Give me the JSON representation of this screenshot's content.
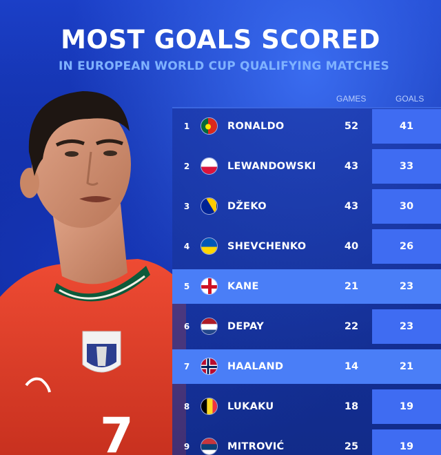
{
  "title": "MOST GOALS SCORED",
  "subtitle": "IN EUROPEAN WORLD CUP QUALIFYING MATCHES",
  "columns": {
    "games": "GAMES",
    "goals": "GOALS"
  },
  "colors": {
    "background": "#1236b0",
    "highlight": "#4a7ef7",
    "goals_column": "#3f6cf2",
    "subtitle": "#7fb2ff",
    "jersey": "#e8412d"
  },
  "rows": [
    {
      "rank": "1",
      "name": "RONALDO",
      "games": "52",
      "goals": "41",
      "flag": "portugal-flag-icon",
      "highlight": false
    },
    {
      "rank": "2",
      "name": "LEWANDOWSKI",
      "games": "43",
      "goals": "33",
      "flag": "poland-flag-icon",
      "highlight": false
    },
    {
      "rank": "3",
      "name": "DŽEKO",
      "games": "43",
      "goals": "30",
      "flag": "bosnia-flag-icon",
      "highlight": false
    },
    {
      "rank": "4",
      "name": "SHEVCHENKO",
      "games": "40",
      "goals": "26",
      "flag": "ukraine-flag-icon",
      "highlight": false
    },
    {
      "rank": "5",
      "name": "KANE",
      "games": "21",
      "goals": "23",
      "flag": "england-flag-icon",
      "highlight": true
    },
    {
      "rank": "6",
      "name": "DEPAY",
      "games": "22",
      "goals": "23",
      "flag": "netherlands-flag-icon",
      "highlight": false
    },
    {
      "rank": "7",
      "name": "HAALAND",
      "games": "14",
      "goals": "21",
      "flag": "norway-flag-icon",
      "highlight": true
    },
    {
      "rank": "8",
      "name": "LUKAKU",
      "games": "18",
      "goals": "19",
      "flag": "belgium-flag-icon",
      "highlight": false
    },
    {
      "rank": "9",
      "name": "MITROVIĆ",
      "games": "25",
      "goals": "19",
      "flag": "serbia-flag-icon",
      "highlight": false
    }
  ],
  "jersey_number": "7"
}
